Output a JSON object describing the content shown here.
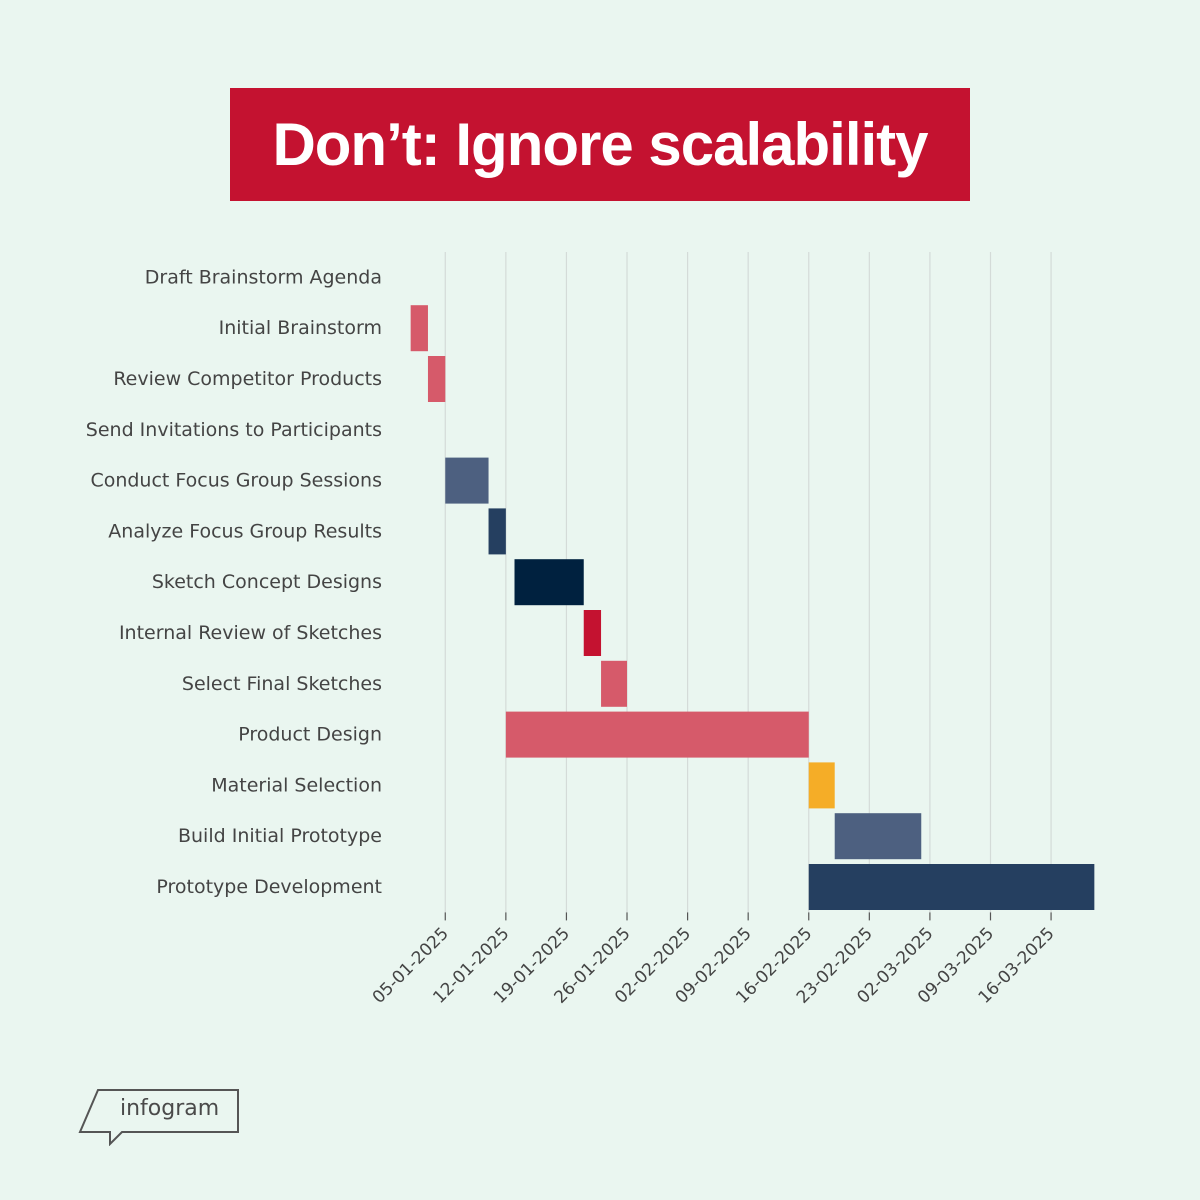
{
  "header": {
    "title": "Don’t: Ignore scalability"
  },
  "colors": {
    "background": "#eaf6f0",
    "banner": "#c41230",
    "red": "#d65a6a",
    "crimson": "#c41230",
    "slate": "#4d6080",
    "navy": "#253f60",
    "dark_navy": "#00213f",
    "amber": "#f5ad27",
    "grid": "#d4dbd8",
    "label": "#444444"
  },
  "logo": {
    "text": "infogram",
    "icon": "speech-bubble-icon"
  },
  "chart_data": {
    "type": "gantt",
    "title": "Don’t: Ignore scalability",
    "xlabel": "",
    "ylabel": "",
    "grid": true,
    "x_date_format": "DD-MM-YYYY",
    "xlim": [
      "2024-12-31",
      "2025-03-22"
    ],
    "ticks": [
      "05-01-2025",
      "12-01-2025",
      "19-01-2025",
      "26-01-2025",
      "02-02-2025",
      "09-02-2025",
      "16-02-2025",
      "23-02-2025",
      "02-03-2025",
      "09-03-2025",
      "16-03-2025"
    ],
    "tasks": [
      {
        "name": "Draft Brainstorm Agenda",
        "start": null,
        "end": null,
        "color": "red"
      },
      {
        "name": "Initial Brainstorm",
        "start": "2025-01-01",
        "end": "2025-01-02",
        "color": "red"
      },
      {
        "name": "Review Competitor Products",
        "start": "2025-01-03",
        "end": "2025-01-04",
        "color": "red"
      },
      {
        "name": "Send Invitations to Participants",
        "start": null,
        "end": null,
        "color": "slate"
      },
      {
        "name": "Conduct Focus Group Sessions",
        "start": "2025-01-05",
        "end": "2025-01-09",
        "color": "slate"
      },
      {
        "name": "Analyze Focus Group Results",
        "start": "2025-01-10",
        "end": "2025-01-11",
        "color": "navy"
      },
      {
        "name": "Sketch Concept Designs",
        "start": "2025-01-13",
        "end": "2025-01-20",
        "color": "dark_navy"
      },
      {
        "name": "Internal Review of Sketches",
        "start": "2025-01-21",
        "end": "2025-01-22",
        "color": "crimson"
      },
      {
        "name": "Select Final Sketches",
        "start": "2025-01-23",
        "end": "2025-01-25",
        "color": "red"
      },
      {
        "name": "Product Design",
        "start": "2025-01-12",
        "end": "2025-02-15",
        "color": "red"
      },
      {
        "name": "Material Selection",
        "start": "2025-02-16",
        "end": "2025-02-18",
        "color": "amber"
      },
      {
        "name": "Build Initial Prototype",
        "start": "2025-02-19",
        "end": "2025-02-28",
        "color": "slate"
      },
      {
        "name": "Prototype Development",
        "start": "2025-02-16",
        "end": "2025-03-20",
        "color": "navy"
      }
    ]
  }
}
